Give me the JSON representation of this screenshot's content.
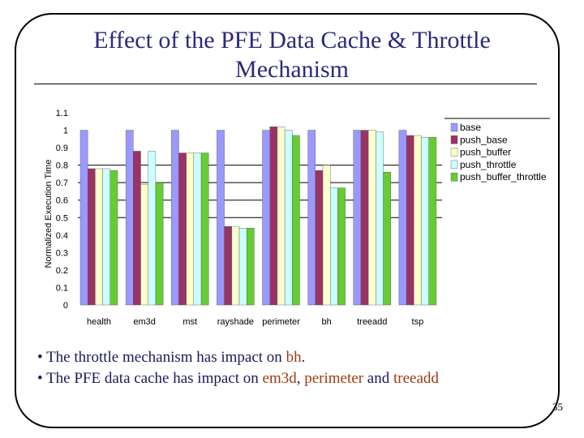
{
  "slide": {
    "title": "Effect of the PFE Data Cache & Throttle Mechanism",
    "page_number": "35"
  },
  "bullets": [
    {
      "marker": "•",
      "parts": [
        {
          "text": "The throttle mechanism has impact on ",
          "highlight": false
        },
        {
          "text": "bh",
          "highlight": true
        },
        {
          "text": ".",
          "highlight": false
        }
      ]
    },
    {
      "marker": "•",
      "parts": [
        {
          "text": "The PFE data cache has impact on ",
          "highlight": false
        },
        {
          "text": "em3d",
          "highlight": true
        },
        {
          "text": ", ",
          "highlight": false
        },
        {
          "text": "perimeter",
          "highlight": true
        },
        {
          "text": " and ",
          "highlight": false
        },
        {
          "text": "treeadd",
          "highlight": true
        }
      ]
    }
  ],
  "chart_data": {
    "type": "bar",
    "title": "",
    "xlabel": "",
    "ylabel": "Normalized Execution Time",
    "ylim": [
      0,
      1.1
    ],
    "yticks": [
      "0",
      "0.1",
      "0.2",
      "0.3",
      "0.4",
      "0.5",
      "0.6",
      "0.7",
      "0.8",
      "0.9",
      "1",
      "1.1"
    ],
    "grid": "horizontal gridlines at 0.5, 0.6, 0.7, 0.8",
    "legend_position": "right",
    "categories": [
      "health",
      "em3d",
      "mst",
      "rayshade",
      "perimeter",
      "bh",
      "treeadd",
      "tsp"
    ],
    "series": [
      {
        "name": "base",
        "color": "#9999ff",
        "values": [
          1.0,
          1.0,
          1.0,
          1.0,
          1.0,
          1.0,
          1.0,
          1.0
        ]
      },
      {
        "name": "push_base",
        "color": "#993366",
        "values": [
          0.78,
          0.88,
          0.87,
          0.45,
          1.02,
          0.77,
          1.0,
          0.97
        ]
      },
      {
        "name": "push_buffer",
        "color": "#ffffcc",
        "values": [
          0.78,
          0.69,
          0.87,
          0.45,
          1.02,
          0.8,
          1.0,
          0.97
        ]
      },
      {
        "name": "push_throttle",
        "color": "#ccffff",
        "values": [
          0.78,
          0.88,
          0.87,
          0.44,
          1.0,
          0.67,
          0.99,
          0.96
        ]
      },
      {
        "name": "push_buffer_throttle",
        "color": "#66cc33",
        "values": [
          0.77,
          0.7,
          0.87,
          0.44,
          0.97,
          0.67,
          0.76,
          0.96
        ]
      }
    ]
  }
}
